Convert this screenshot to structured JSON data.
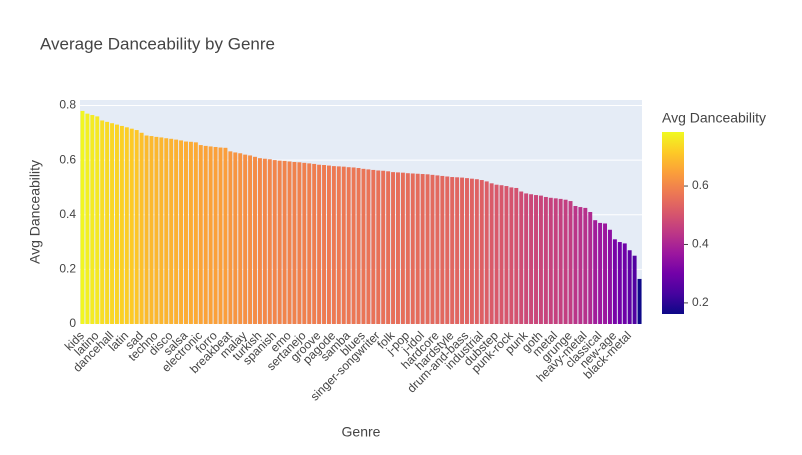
{
  "chart_data": {
    "type": "bar",
    "title": "Average Danceability by Genre",
    "x_label": "Genre",
    "y_label": "Avg Danceability",
    "colorbar_title": "Avg Danceability",
    "categories": [
      "kids",
      null,
      null,
      "latino",
      null,
      null,
      "dancehall",
      null,
      null,
      "latin",
      null,
      null,
      "sad",
      null,
      null,
      "techno",
      null,
      null,
      "disco",
      null,
      null,
      "salsa",
      null,
      null,
      "electronic",
      null,
      null,
      "forro",
      null,
      null,
      "breakbeat",
      null,
      null,
      "malay",
      null,
      null,
      "turkish",
      null,
      null,
      "spanish",
      null,
      null,
      "emo",
      null,
      null,
      "sertanejo",
      null,
      null,
      "groove",
      null,
      null,
      "pagode",
      null,
      null,
      "samba",
      null,
      null,
      "blues",
      null,
      null,
      "singer-songwriter",
      null,
      null,
      "folk",
      null,
      null,
      "j-pop",
      null,
      null,
      "j-idol",
      null,
      null,
      "hardcore",
      null,
      null,
      "hardstyle",
      null,
      null,
      "drum-and-bass",
      null,
      null,
      "industrial",
      null,
      null,
      "dubstep",
      null,
      null,
      "punk-rock",
      null,
      null,
      "punk",
      null,
      null,
      "goth",
      null,
      null,
      "metal",
      null,
      null,
      "grunge",
      null,
      null,
      "heavy-metal",
      null,
      null,
      "classical",
      null,
      null,
      "new-age",
      null,
      null,
      "black-metal",
      null,
      null
    ],
    "values": [
      0.78,
      0.77,
      0.765,
      0.76,
      0.745,
      0.74,
      0.735,
      0.73,
      0.725,
      0.72,
      0.715,
      0.71,
      0.7,
      0.69,
      0.688,
      0.685,
      0.683,
      0.68,
      0.678,
      0.675,
      0.672,
      0.668,
      0.667,
      0.665,
      0.655,
      0.652,
      0.65,
      0.648,
      0.646,
      0.645,
      0.632,
      0.628,
      0.625,
      0.62,
      0.617,
      0.612,
      0.607,
      0.605,
      0.603,
      0.6,
      0.598,
      0.597,
      0.595,
      0.593,
      0.592,
      0.59,
      0.588,
      0.586,
      0.583,
      0.582,
      0.58,
      0.578,
      0.577,
      0.576,
      0.574,
      0.573,
      0.571,
      0.568,
      0.566,
      0.564,
      0.562,
      0.561,
      0.559,
      0.556,
      0.555,
      0.554,
      0.552,
      0.551,
      0.55,
      0.549,
      0.548,
      0.546,
      0.544,
      0.542,
      0.54,
      0.538,
      0.537,
      0.536,
      0.534,
      0.532,
      0.53,
      0.527,
      0.522,
      0.515,
      0.51,
      0.508,
      0.505,
      0.5,
      0.498,
      0.485,
      0.478,
      0.475,
      0.472,
      0.47,
      0.465,
      0.462,
      0.46,
      0.458,
      0.455,
      0.45,
      0.432,
      0.428,
      0.425,
      0.41,
      0.38,
      0.37,
      0.368,
      0.345,
      0.31,
      0.3,
      0.295,
      0.27,
      0.25,
      0.165
    ],
    "ylim": [
      0,
      0.82
    ],
    "yticks": [
      0,
      0.2,
      0.4,
      0.6,
      0.8
    ],
    "grid": true,
    "colorscale": [
      "#0d0887",
      "#46039f",
      "#7201a8",
      "#9c179e",
      "#bd3786",
      "#d8576b",
      "#ed7953",
      "#fb9f3a",
      "#fdca26",
      "#f0f921"
    ],
    "clim": [
      0.162,
      0.785
    ],
    "cticks": [
      0.2,
      0.4,
      0.6
    ]
  }
}
